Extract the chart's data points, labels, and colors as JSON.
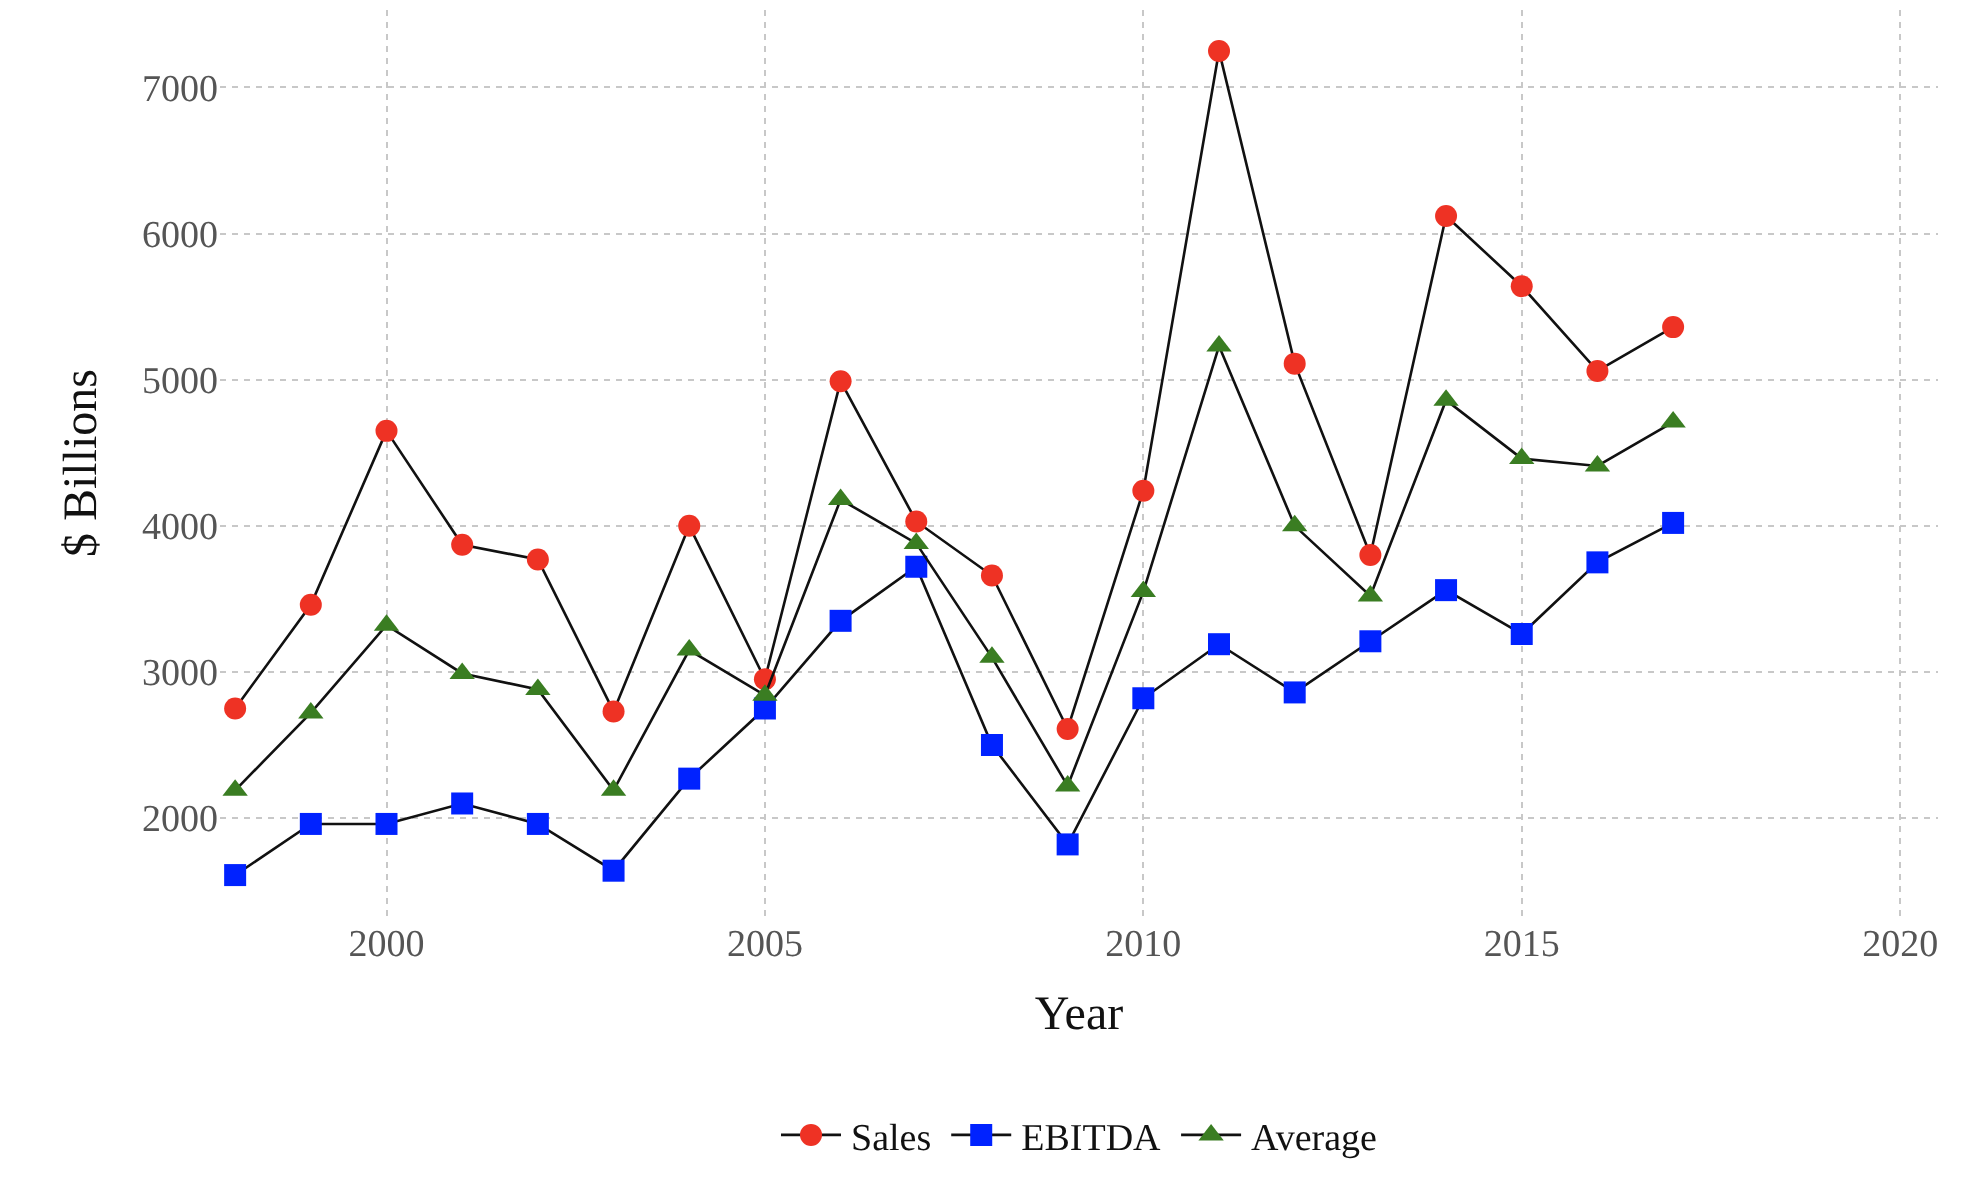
{
  "chart_data": {
    "type": "line",
    "xlabel": "Year",
    "ylabel": "$ Billions",
    "x": [
      1998,
      1999,
      2000,
      2001,
      2002,
      2003,
      2004,
      2005,
      2006,
      2007,
      2008,
      2009,
      2010,
      2011,
      2012,
      2013,
      2014,
      2015,
      2016,
      2017
    ],
    "series": [
      {
        "name": "Sales",
        "color": "#ee3224",
        "marker": "circle",
        "values": [
          2750,
          3460,
          4650,
          3870,
          3770,
          2730,
          4000,
          2950,
          4990,
          4030,
          3660,
          2610,
          4240,
          7250,
          5110,
          3800,
          6120,
          5640,
          5060,
          5360
        ]
      },
      {
        "name": "EBITDA",
        "color": "#0022ff",
        "marker": "square",
        "values": [
          1610,
          1960,
          1960,
          2100,
          1960,
          1640,
          2270,
          2750,
          3350,
          3720,
          2500,
          1820,
          2820,
          3190,
          2860,
          3210,
          3560,
          3260,
          3750,
          4020
        ]
      },
      {
        "name": "Average",
        "color": "#3a7d22",
        "marker": "triangle",
        "values": [
          2190,
          2720,
          3320,
          2990,
          2880,
          2190,
          3150,
          2840,
          4180,
          3880,
          3100,
          2220,
          3550,
          5230,
          4000,
          3520,
          4860,
          4460,
          4410,
          4710
        ]
      }
    ],
    "xlim": [
      1997.8,
      2020.5
    ],
    "xticks": [
      2000,
      2005,
      2010,
      2015,
      2020
    ],
    "ylim": [
      1330,
      7530
    ],
    "yticks": [
      2000,
      3000,
      4000,
      5000,
      6000,
      7000
    ],
    "grid": true,
    "legend": "bottom",
    "line_style": "solid"
  }
}
